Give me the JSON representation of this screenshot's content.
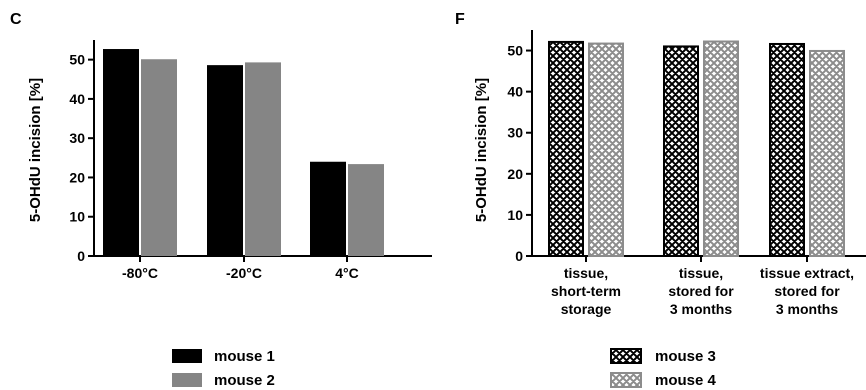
{
  "colors": {
    "mouse1": "#000000",
    "mouse2": "#858585",
    "mouse3_bg": "#ffffff",
    "mouse3_line": "#000000",
    "mouse4_bg": "#ffffff",
    "mouse4_line": "#8c8c8c"
  },
  "chart_data": [
    {
      "panel": "C",
      "type": "bar",
      "ylabel": "5-OHdU incision [%]",
      "ylim": [
        0,
        55
      ],
      "yticks": [
        0,
        10,
        20,
        30,
        40,
        50
      ],
      "categories": [
        "-80°C",
        "-20°C",
        "4°C"
      ],
      "series": [
        {
          "name": "mouse 1",
          "values": [
            52.7,
            48.6,
            24.0
          ]
        },
        {
          "name": "mouse 2",
          "values": [
            50.1,
            49.3,
            23.4
          ]
        }
      ],
      "legend_position": "bottom"
    },
    {
      "panel": "F",
      "type": "bar",
      "ylabel": "5-OHdU incision [%]",
      "ylim": [
        0,
        55
      ],
      "yticks": [
        0,
        10,
        20,
        30,
        40,
        50
      ],
      "categories": [
        [
          "tissue,",
          "short-term",
          "storage"
        ],
        [
          "tissue,",
          "stored for",
          "3 months"
        ],
        [
          "tissue extract,",
          "stored for",
          "3 months"
        ]
      ],
      "series": [
        {
          "name": "mouse 3",
          "values": [
            52.1,
            51.0,
            51.6
          ]
        },
        {
          "name": "mouse 4",
          "values": [
            51.7,
            52.2,
            49.9
          ]
        }
      ],
      "legend_position": "bottom"
    }
  ]
}
